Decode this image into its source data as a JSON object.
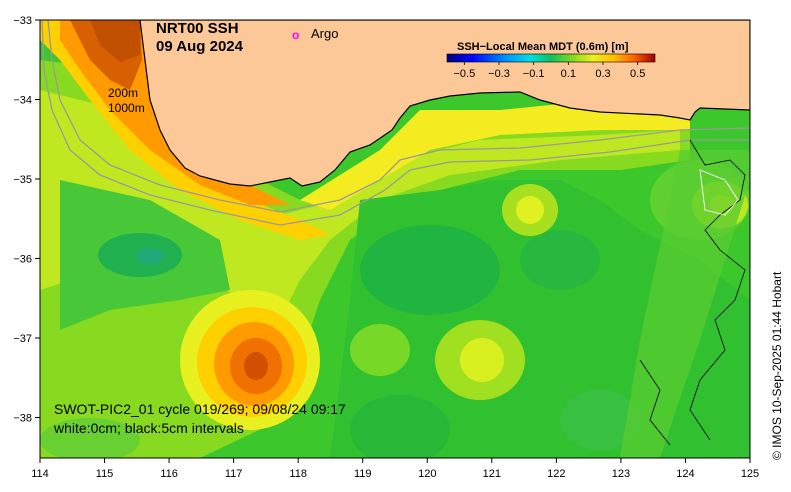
{
  "title": {
    "line1": "NRT00 SSH",
    "line2": "09 Aug 2024"
  },
  "legend": {
    "marker": "o",
    "label": "Argo",
    "marker_color": "#ff00ff"
  },
  "colorbar": {
    "title": "SSH−Local Mean MDT (0.6m) [m]",
    "ticks": [
      "−0.5",
      "−0.3",
      "−0.1",
      "0.1",
      "0.3",
      "0.5"
    ],
    "tick_values": [
      -0.5,
      -0.3,
      -0.1,
      0.1,
      0.3,
      0.5
    ],
    "colors": [
      "#00007f",
      "#0000ff",
      "#0080ff",
      "#00d8ff",
      "#00d070",
      "#18c018",
      "#80d820",
      "#e0f020",
      "#ffd000",
      "#ff8000",
      "#e04000",
      "#a01000"
    ]
  },
  "depth_labels": {
    "shallow": "200m",
    "deep": "1000m"
  },
  "axes": {
    "x_ticks": [
      "114",
      "115",
      "116",
      "117",
      "118",
      "119",
      "120",
      "121",
      "122",
      "123",
      "124",
      "125"
    ],
    "y_ticks": [
      "−33",
      "−34",
      "−35",
      "−36",
      "−37",
      "−38"
    ]
  },
  "annotation": {
    "line1": "SWOT-PIC2_01 cycle 019/269; 09/08/24 09:17",
    "line2": "white:0cm; black:5cm intervals"
  },
  "credit": "© IMOS 10-Sep-2025 01:44 Hobart",
  "colors": {
    "land": "#fcc898",
    "coast": "#000000",
    "isobath": "#9a9a9a"
  }
}
